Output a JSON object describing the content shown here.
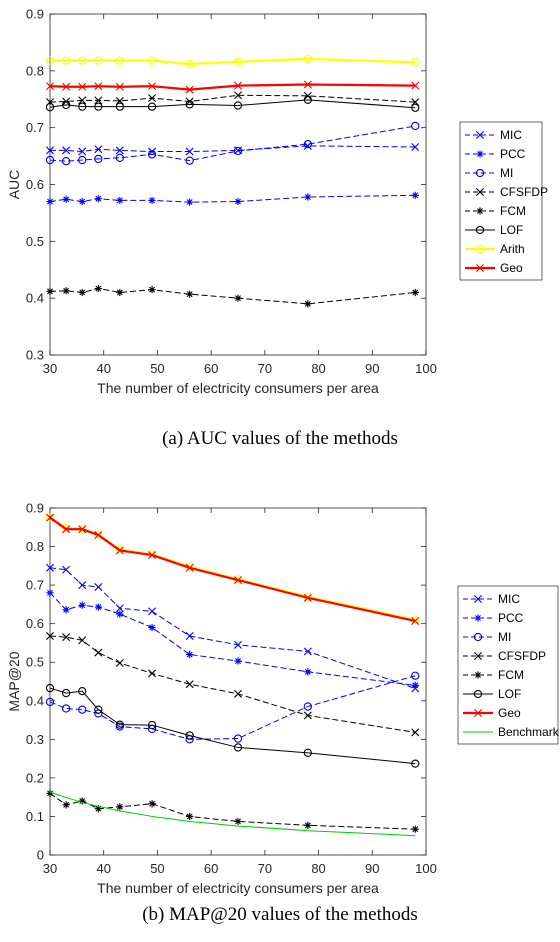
{
  "chart_data": [
    {
      "type": "line",
      "caption": "(a) AUC values of the methods",
      "xlabel": "The number of electricity consumers per area",
      "ylabel": "AUC",
      "xlim": [
        30,
        100
      ],
      "ylim": [
        0.3,
        0.9
      ],
      "xticks": [
        30,
        40,
        50,
        60,
        70,
        80,
        90,
        100
      ],
      "yticks": [
        0.3,
        0.4,
        0.5,
        0.6,
        0.7,
        0.8,
        0.9
      ],
      "x": [
        30,
        33,
        36,
        39,
        43,
        49,
        56,
        65,
        78,
        98
      ],
      "legend_position": "right",
      "series": [
        {
          "name": "MIC",
          "color": "#0000ff",
          "dash": "dashed",
          "marker": "x",
          "values": [
            0.66,
            0.66,
            0.658,
            0.662,
            0.66,
            0.658,
            0.658,
            0.66,
            0.668,
            0.666
          ]
        },
        {
          "name": "PCC",
          "color": "#0000ff",
          "dash": "dashed",
          "marker": "star",
          "values": [
            0.57,
            0.574,
            0.57,
            0.575,
            0.572,
            0.572,
            0.569,
            0.57,
            0.578,
            0.581
          ]
        },
        {
          "name": "MI",
          "color": "#0000ff",
          "dash": "dashed",
          "marker": "circle",
          "values": [
            0.643,
            0.641,
            0.643,
            0.645,
            0.647,
            0.653,
            0.642,
            0.659,
            0.671,
            0.703
          ]
        },
        {
          "name": "CFSFDP",
          "color": "#000000",
          "dash": "dashed",
          "marker": "x",
          "values": [
            0.745,
            0.746,
            0.748,
            0.748,
            0.747,
            0.752,
            0.746,
            0.757,
            0.756,
            0.745
          ]
        },
        {
          "name": "FCM",
          "color": "#000000",
          "dash": "dashed",
          "marker": "star",
          "values": [
            0.412,
            0.413,
            0.41,
            0.417,
            0.41,
            0.415,
            0.407,
            0.4,
            0.39,
            0.41
          ]
        },
        {
          "name": "LOF",
          "color": "#000000",
          "dash": "solid",
          "marker": "circle",
          "values": [
            0.736,
            0.74,
            0.737,
            0.737,
            0.737,
            0.737,
            0.741,
            0.739,
            0.749,
            0.735
          ]
        },
        {
          "name": "Arith",
          "color": "#ffff00",
          "dash": "solid",
          "marker": "circle",
          "values": [
            0.818,
            0.818,
            0.818,
            0.818,
            0.818,
            0.818,
            0.812,
            0.816,
            0.821,
            0.815
          ]
        },
        {
          "name": "Geo",
          "color": "#ff0000",
          "dash": "solid",
          "marker": "x",
          "values": [
            0.773,
            0.772,
            0.772,
            0.773,
            0.772,
            0.773,
            0.767,
            0.774,
            0.776,
            0.774
          ]
        }
      ]
    },
    {
      "type": "line",
      "caption": "(b) MAP@20 values of the methods",
      "xlabel": "The number of electricity consumers per area",
      "ylabel": "MAP@20",
      "xlim": [
        30,
        100
      ],
      "ylim": [
        0,
        0.9
      ],
      "xticks": [
        30,
        40,
        50,
        60,
        70,
        80,
        90,
        100
      ],
      "yticks": [
        0,
        0.1,
        0.2,
        0.3,
        0.4,
        0.5,
        0.6,
        0.7,
        0.8,
        0.9
      ],
      "x": [
        30,
        33,
        36,
        39,
        43,
        49,
        56,
        65,
        78,
        98
      ],
      "legend_position": "right",
      "series": [
        {
          "name": "MIC",
          "color": "#0000ff",
          "dash": "dashed",
          "marker": "x",
          "values": [
            0.745,
            0.74,
            0.7,
            0.695,
            0.64,
            0.632,
            0.568,
            0.545,
            0.528,
            0.432
          ]
        },
        {
          "name": "PCC",
          "color": "#0000ff",
          "dash": "dashed",
          "marker": "star",
          "values": [
            0.68,
            0.636,
            0.648,
            0.643,
            0.625,
            0.59,
            0.52,
            0.503,
            0.475,
            0.44
          ]
        },
        {
          "name": "MI",
          "color": "#0000ff",
          "dash": "dashed",
          "marker": "circle",
          "values": [
            0.397,
            0.38,
            0.377,
            0.367,
            0.333,
            0.327,
            0.3,
            0.302,
            0.385,
            0.465
          ]
        },
        {
          "name": "CFSFDP",
          "color": "#000000",
          "dash": "dashed",
          "marker": "x",
          "values": [
            0.568,
            0.565,
            0.557,
            0.525,
            0.498,
            0.471,
            0.443,
            0.418,
            0.362,
            0.318
          ]
        },
        {
          "name": "FCM",
          "color": "#000000",
          "dash": "dashed",
          "marker": "star",
          "values": [
            0.16,
            0.13,
            0.14,
            0.12,
            0.125,
            0.133,
            0.1,
            0.087,
            0.077,
            0.067
          ]
        },
        {
          "name": "LOF",
          "color": "#000000",
          "dash": "solid",
          "marker": "circle",
          "values": [
            0.433,
            0.42,
            0.425,
            0.377,
            0.338,
            0.337,
            0.31,
            0.279,
            0.265,
            0.237
          ]
        },
        {
          "name": "Arith",
          "color": "#ffff00",
          "dash": "solid",
          "marker": "circle",
          "values": [
            0.875,
            0.848,
            0.845,
            0.832,
            0.792,
            0.78,
            0.748,
            0.715,
            0.67,
            0.61
          ],
          "legend": false
        },
        {
          "name": "Geo",
          "color": "#ff0000",
          "dash": "solid",
          "marker": "x",
          "values": [
            0.875,
            0.845,
            0.845,
            0.83,
            0.79,
            0.778,
            0.745,
            0.713,
            0.667,
            0.607
          ]
        },
        {
          "name": "Benchmark",
          "color": "#00cc00",
          "dash": "solid",
          "marker": "none",
          "curve": true,
          "values": [
            0.163,
            0.149,
            0.136,
            0.126,
            0.114,
            0.1,
            0.087,
            0.075,
            0.063,
            0.05
          ]
        }
      ]
    }
  ]
}
